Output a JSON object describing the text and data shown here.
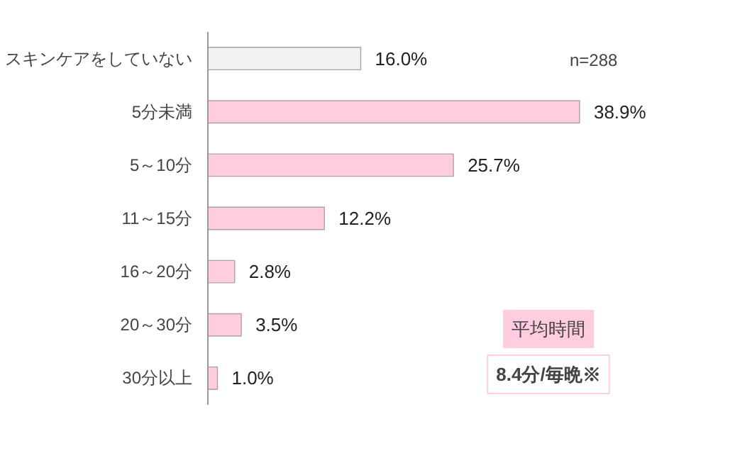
{
  "chart_data": {
    "type": "bar",
    "orientation": "horizontal",
    "categories": [
      "スキンケアをしていない",
      "5分未満",
      "5～10分",
      "11～15分",
      "16～20分",
      "20～30分",
      "30分以上"
    ],
    "values": [
      16.0,
      38.9,
      25.7,
      12.2,
      2.8,
      3.5,
      1.0
    ],
    "colors": [
      "#f2f2f2",
      "#ffcce0",
      "#ffcce0",
      "#ffcce0",
      "#ffcce0",
      "#ffcce0",
      "#ffcce0"
    ],
    "value_labels": [
      "16.0%",
      "38.9%",
      "25.7%",
      "12.2%",
      "2.8%",
      "3.5%",
      "1.0%"
    ],
    "annotations": [
      "n=288",
      "平均時間",
      "8.4分/毎晩※"
    ],
    "grid": false
  }
}
